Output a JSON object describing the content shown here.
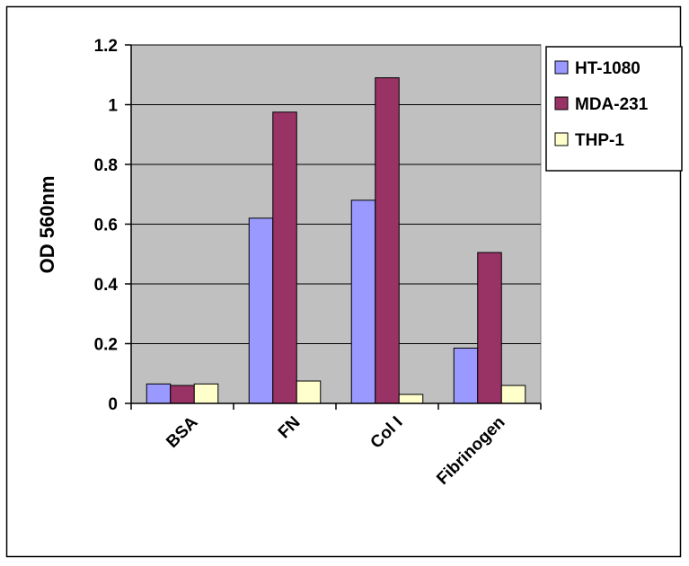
{
  "chart_data": {
    "type": "bar",
    "title": "",
    "xlabel": "",
    "ylabel": "OD 560nm",
    "categories": [
      "BSA",
      "FN",
      "Col I",
      "Fibrinogen"
    ],
    "series": [
      {
        "name": "HT-1080",
        "color": "#9999ff",
        "values": [
          0.065,
          0.62,
          0.68,
          0.185
        ]
      },
      {
        "name": "MDA-231",
        "color": "#993366",
        "values": [
          0.06,
          0.975,
          1.09,
          0.505
        ]
      },
      {
        "name": "THP-1",
        "color": "#ffffcc",
        "values": [
          0.065,
          0.075,
          0.03,
          0.06
        ]
      }
    ],
    "ylim": [
      0,
      1.2
    ],
    "yticks": [
      0,
      0.2,
      0.4,
      0.6,
      0.8,
      1,
      1.2
    ],
    "ytick_labels": [
      "0",
      "0.2",
      "0.4",
      "0.6",
      "0.8",
      "1",
      "1.2"
    ],
    "grid": true,
    "plot_background": "#c0c0c0",
    "legend_position": "right"
  }
}
